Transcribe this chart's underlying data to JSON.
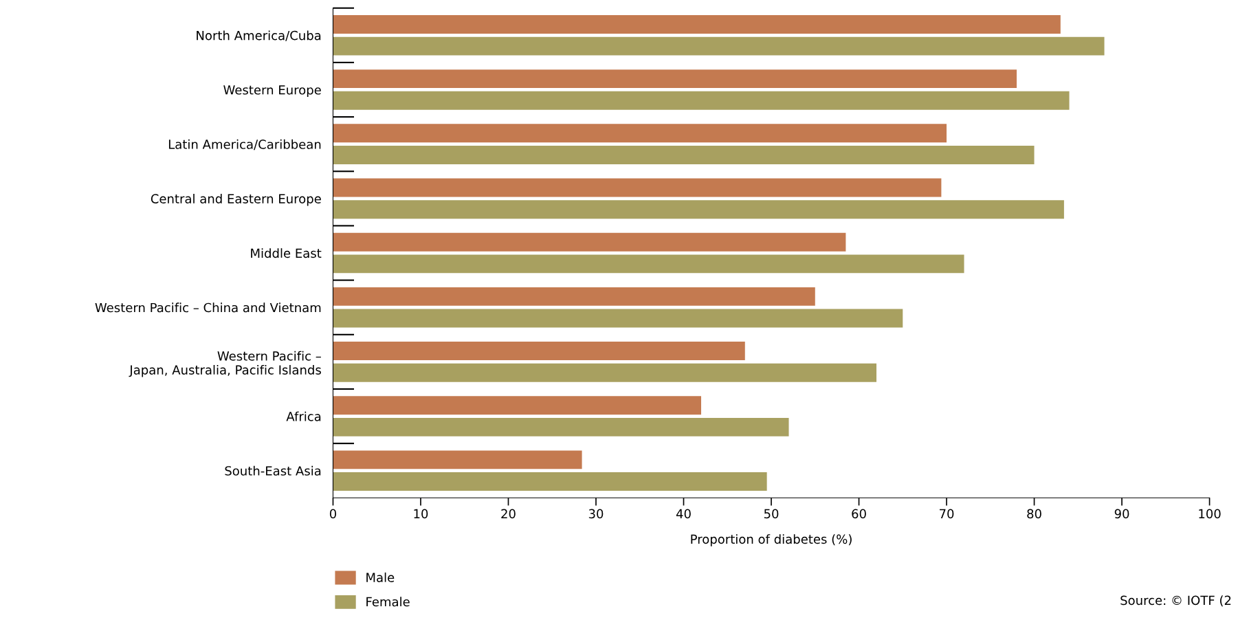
{
  "chart_data": {
    "type": "bar",
    "orientation": "horizontal",
    "categories": [
      "North America/Cuba",
      "Western Europe",
      "Latin America/Caribbean",
      "Central and Eastern Europe",
      "Middle East",
      "Western Pacific – China and Vietnam",
      "Western Pacific –\nJapan, Australia, Pacific Islands",
      "Africa",
      "South-East Asia"
    ],
    "series": [
      {
        "name": "Male",
        "color": "#c47a50",
        "values": [
          83,
          78,
          70,
          69.4,
          58.5,
          55,
          47,
          42,
          28.4
        ]
      },
      {
        "name": "Female",
        "color": "#a8a060",
        "values": [
          88,
          84,
          80,
          83.4,
          72,
          65,
          62,
          52,
          49.5
        ]
      }
    ],
    "xlabel": "Proportion of diabetes (%)",
    "xlim": [
      0,
      100
    ],
    "xticks": [
      0,
      10,
      20,
      30,
      40,
      50,
      60,
      70,
      80,
      90,
      100
    ],
    "grid": false,
    "legend": "bottom left",
    "annotations": [
      "Source: © IOTF (2"
    ]
  }
}
